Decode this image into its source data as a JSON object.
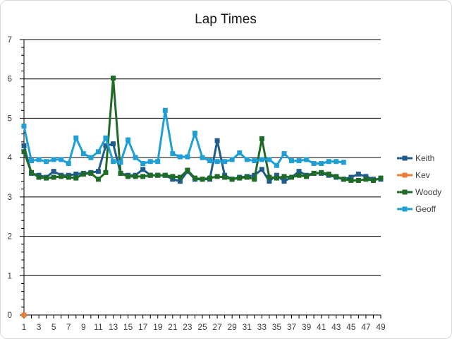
{
  "chart_data": {
    "type": "line",
    "title": "Lap Times",
    "xlabel": "",
    "ylabel": "",
    "ylim": [
      0,
      7
    ],
    "y_ticks": [
      0,
      1,
      2,
      3,
      4,
      5,
      6,
      7
    ],
    "x_ticks": [
      1,
      3,
      5,
      7,
      9,
      11,
      13,
      15,
      17,
      19,
      21,
      23,
      25,
      27,
      29,
      31,
      33,
      35,
      37,
      39,
      41,
      43,
      45,
      47,
      49
    ],
    "xlim": [
      1,
      49
    ],
    "grid": "horizontal major gridlines",
    "legend_position": "right",
    "marker": "square",
    "series": [
      {
        "name": "Keith",
        "color": "#1f5c8b",
        "values": [
          4.3,
          3.6,
          3.55,
          3.5,
          3.65,
          3.55,
          3.55,
          3.58,
          3.6,
          3.62,
          3.65,
          4.3,
          4.35,
          3.6,
          3.55,
          3.55,
          3.7,
          3.55,
          3.55,
          3.55,
          3.45,
          3.4,
          3.65,
          3.45,
          3.45,
          3.45,
          4.43,
          3.55,
          3.45,
          3.5,
          3.52,
          3.55,
          3.7,
          3.4,
          3.55,
          3.4,
          3.5,
          3.65,
          3.55,
          3.6,
          3.6,
          3.55,
          3.5,
          3.45,
          3.5,
          3.58,
          3.52,
          3.45,
          3.45
        ]
      },
      {
        "name": "Kev",
        "color": "#ed7d31",
        "values": [
          0
        ]
      },
      {
        "name": "Woody",
        "color": "#1e6b27",
        "values": [
          4.15,
          3.62,
          3.5,
          3.48,
          3.5,
          3.52,
          3.5,
          3.48,
          3.58,
          3.6,
          3.45,
          3.62,
          6.02,
          3.6,
          3.52,
          3.52,
          3.52,
          3.55,
          3.55,
          3.55,
          3.52,
          3.5,
          3.68,
          3.48,
          3.45,
          3.48,
          3.52,
          3.5,
          3.45,
          3.48,
          3.5,
          3.45,
          4.48,
          3.5,
          3.48,
          3.52,
          3.5,
          3.55,
          3.52,
          3.6,
          3.62,
          3.58,
          3.52,
          3.45,
          3.42,
          3.42,
          3.45,
          3.42,
          3.48
        ]
      },
      {
        "name": "Geoff",
        "color": "#1f9fd5",
        "values": [
          4.8,
          3.92,
          3.95,
          3.9,
          3.95,
          3.95,
          3.85,
          4.5,
          4.1,
          4.0,
          4.15,
          4.5,
          3.9,
          3.88,
          4.45,
          4.0,
          3.85,
          3.9,
          3.9,
          5.2,
          4.1,
          4.02,
          4.02,
          4.62,
          4.0,
          3.92,
          3.9,
          3.9,
          3.95,
          4.12,
          3.95,
          3.92,
          3.95,
          3.95,
          3.8,
          4.1,
          3.92,
          3.92,
          3.95,
          3.85,
          3.85,
          3.9,
          3.9,
          3.88
        ]
      }
    ]
  }
}
